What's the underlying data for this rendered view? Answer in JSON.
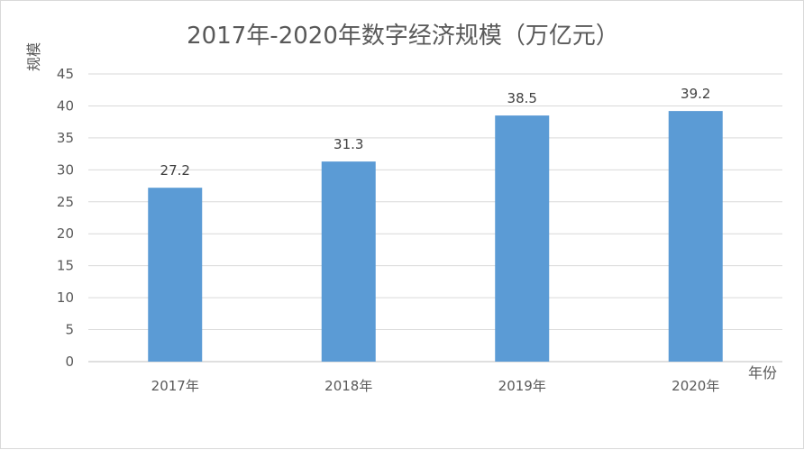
{
  "chart_data": {
    "type": "bar",
    "title": "2017年-2020年数字经济规模（万亿元）",
    "xlabel": "年份",
    "ylabel": "规模",
    "categories": [
      "2017年",
      "2018年",
      "2019年",
      "2020年"
    ],
    "series": [
      {
        "values": [
          27.2,
          31.3,
          38.5,
          39.2
        ]
      }
    ],
    "data_labels": [
      "27.2",
      "31.3",
      "38.5",
      "39.2"
    ],
    "ylim": [
      0,
      45
    ],
    "yticks": [
      0,
      5,
      10,
      15,
      20,
      25,
      30,
      35,
      40,
      45
    ],
    "ytick_labels": [
      "0",
      "5",
      "10",
      "15",
      "20",
      "25",
      "30",
      "35",
      "40",
      "45"
    ],
    "grid": true,
    "legend": "none",
    "colors": {
      "bar": "#5b9bd5",
      "grid": "#d9d9d9",
      "axis": "#bfbfbf",
      "text": "#595959"
    }
  }
}
